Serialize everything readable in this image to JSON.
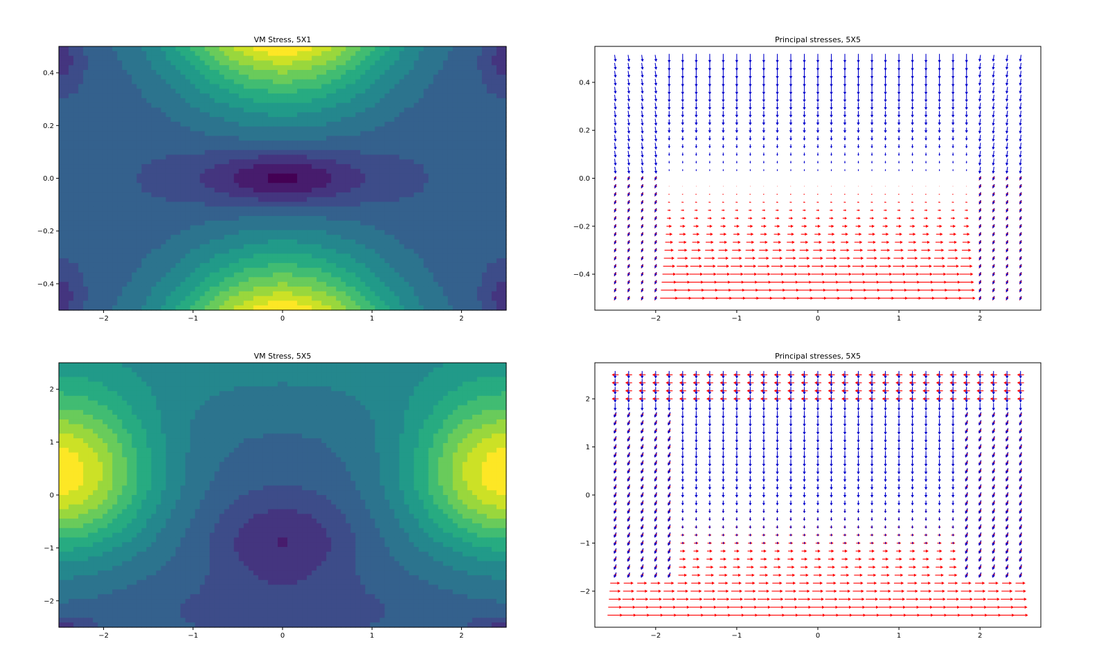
{
  "figure": {
    "panels": [
      {
        "title": "VM Stress, 5X1",
        "xticks": [
          {
            "v": -2,
            "label": "−2"
          },
          {
            "v": -1,
            "label": "−1"
          },
          {
            "v": 0,
            "label": "0"
          },
          {
            "v": 1,
            "label": "1"
          },
          {
            "v": 2,
            "label": "2"
          }
        ],
        "yticks": [
          {
            "v": 0.4,
            "label": "0.4"
          },
          {
            "v": 0.2,
            "label": "0.2"
          },
          {
            "v": 0.0,
            "label": "0.0"
          },
          {
            "v": -0.2,
            "label": "−0.2"
          },
          {
            "v": -0.4,
            "label": "−0.4"
          }
        ]
      },
      {
        "title": "Principal stresses, 5X5",
        "xticks": [
          {
            "v": -2,
            "label": "−2"
          },
          {
            "v": -1,
            "label": "−1"
          },
          {
            "v": 0,
            "label": "0"
          },
          {
            "v": 1,
            "label": "1"
          },
          {
            "v": 2,
            "label": "2"
          }
        ],
        "yticks": [
          {
            "v": 0.4,
            "label": "0.4"
          },
          {
            "v": 0.2,
            "label": "0.2"
          },
          {
            "v": 0.0,
            "label": "0.0"
          },
          {
            "v": -0.2,
            "label": "−0.2"
          },
          {
            "v": -0.4,
            "label": "−0.4"
          }
        ]
      },
      {
        "title": "VM Stress, 5X5",
        "xticks": [
          {
            "v": -2,
            "label": "−2"
          },
          {
            "v": -1,
            "label": "−1"
          },
          {
            "v": 0,
            "label": "0"
          },
          {
            "v": 1,
            "label": "1"
          },
          {
            "v": 2,
            "label": "2"
          }
        ],
        "yticks": [
          {
            "v": 2,
            "label": "2"
          },
          {
            "v": 1,
            "label": "1"
          },
          {
            "v": 0,
            "label": "0"
          },
          {
            "v": -1,
            "label": "−1"
          },
          {
            "v": -2,
            "label": "−2"
          }
        ]
      },
      {
        "title": "Principal stresses, 5X5",
        "xticks": [
          {
            "v": -2,
            "label": "−2"
          },
          {
            "v": -1,
            "label": "−1"
          },
          {
            "v": 0,
            "label": "0"
          },
          {
            "v": 1,
            "label": "1"
          },
          {
            "v": 2,
            "label": "2"
          }
        ],
        "yticks": [
          {
            "v": 2,
            "label": "2"
          },
          {
            "v": 1,
            "label": "1"
          },
          {
            "v": 0,
            "label": "0"
          },
          {
            "v": -1,
            "label": "−1"
          },
          {
            "v": -2,
            "label": "−2"
          }
        ]
      }
    ]
  },
  "chart_data": [
    {
      "type": "heatmap",
      "title": "VM Stress, 5X1",
      "xlabel": "",
      "ylabel": "",
      "xlim": [
        -2.5,
        2.5
      ],
      "ylim": [
        -0.5,
        0.5
      ],
      "colormap": "viridis",
      "levels": 14,
      "grid": false,
      "field_description": "max at top and bottom edges near x=0; min elongated along y=0 centered x=0; small low spots in the four corners"
    },
    {
      "type": "scatter",
      "subtype": "quiver",
      "title": "Principal stresses, 5X5",
      "xlabel": "",
      "ylabel": "",
      "xlim": [
        -2.75,
        2.75
      ],
      "ylim": [
        -0.55,
        0.55
      ],
      "grid_x": [
        -2.5,
        2.5
      ],
      "grid_y": [
        -0.5,
        0.5
      ],
      "grid_n": [
        31,
        31
      ],
      "series": [],
      "colors": {
        "sigma1": "#ff0000",
        "sigma2": "#0000cc"
      }
    },
    {
      "type": "heatmap",
      "title": "VM Stress, 5X5",
      "xlabel": "",
      "ylabel": "",
      "xlim": [
        -2.5,
        2.5
      ],
      "ylim": [
        -2.5,
        2.5
      ],
      "colormap": "viridis",
      "levels": 14,
      "grid": false,
      "field_description": "max at left and right edges around y=0.5; min pocket centered near (0,-1); small low spots at bottom corners"
    },
    {
      "type": "scatter",
      "subtype": "quiver",
      "title": "Principal stresses, 5X5",
      "xlabel": "",
      "ylabel": "",
      "xlim": [
        -2.75,
        2.75
      ],
      "ylim": [
        -2.75,
        2.75
      ],
      "grid_x": [
        -2.5,
        2.5
      ],
      "grid_y": [
        -2.5,
        2.5
      ],
      "grid_n": [
        31,
        31
      ],
      "series": [],
      "colors": {
        "sigma1": "#ff0000",
        "sigma2": "#0000cc"
      }
    }
  ]
}
